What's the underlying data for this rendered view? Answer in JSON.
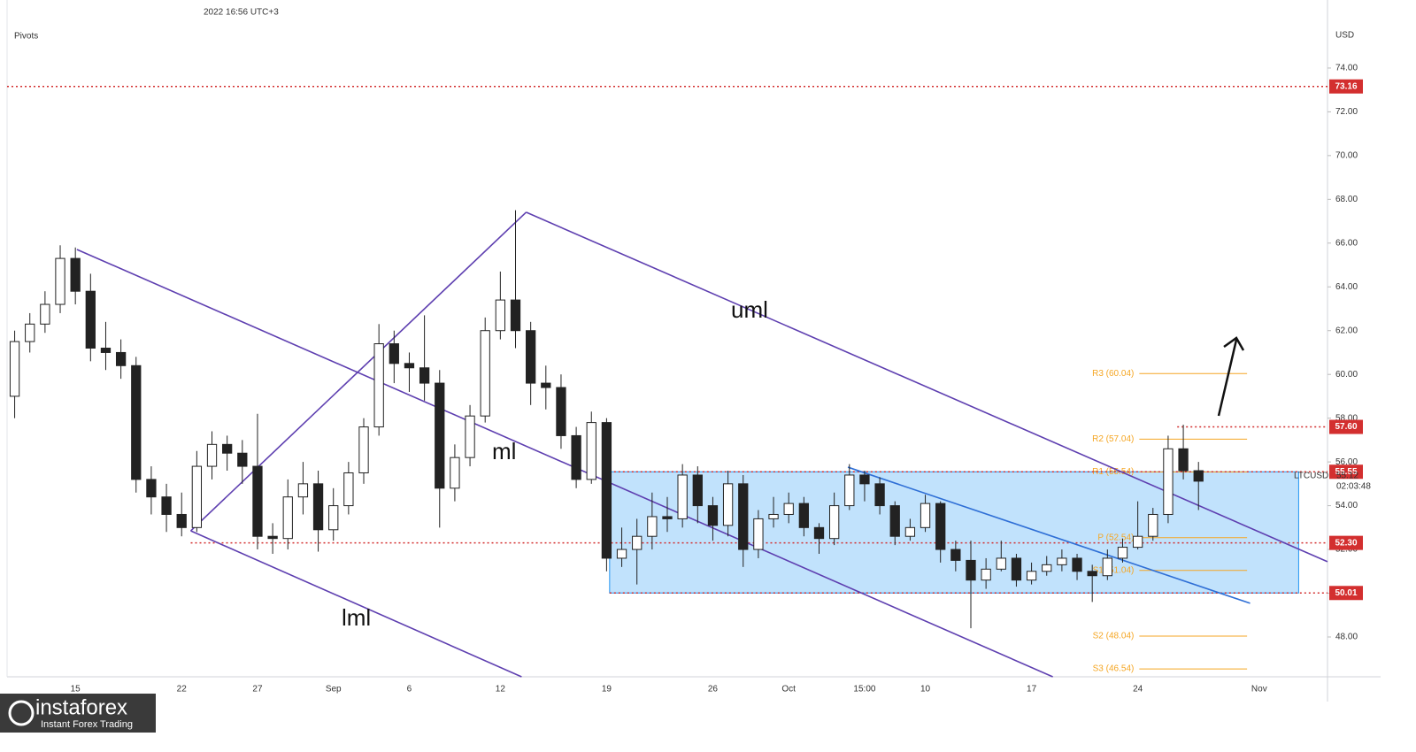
{
  "chart_data": {
    "type": "candlestick",
    "header": "2022 16:56 UTC+3",
    "indicator": "Pivots",
    "currency": "USD",
    "symbol": "LTCUSD",
    "countdown": "02:03:48",
    "brand": "instaforex",
    "brand_tagline": "Instant Forex Trading",
    "annotations": {
      "upper": "uml",
      "median": "ml",
      "lower": "lml"
    },
    "categories": [
      null,
      null,
      null,
      null,
      "15",
      null,
      null,
      null,
      null,
      null,
      null,
      "22",
      null,
      null,
      null,
      null,
      "27",
      null,
      null,
      null,
      null,
      "Sep",
      null,
      null,
      null,
      null,
      "6",
      null,
      null,
      null,
      null,
      null,
      "12",
      null,
      null,
      null,
      null,
      null,
      null,
      "19",
      null,
      null,
      null,
      null,
      null,
      null,
      "26",
      null,
      null,
      null,
      null,
      "Oct",
      null,
      null,
      null,
      null,
      "15:00",
      null,
      null,
      null,
      "10",
      null,
      null,
      null,
      null,
      null,
      null,
      "17",
      null,
      null,
      null,
      null,
      null,
      null,
      "24",
      null,
      null,
      null,
      null,
      null,
      null,
      null,
      "Nov",
      null,
      null,
      null,
      null
    ],
    "open": [
      59.0,
      61.5,
      62.3,
      63.2,
      65.3,
      63.8,
      61.2,
      61.0,
      60.4,
      55.2,
      54.4,
      53.6,
      53.0,
      55.8,
      56.8,
      56.4,
      55.8,
      52.6,
      52.5,
      54.4,
      55.0,
      52.9,
      54.0,
      55.5,
      57.6,
      61.4,
      60.5,
      60.3,
      59.6,
      54.8,
      56.2,
      58.1,
      62.0,
      63.4,
      62.0,
      59.6,
      59.4,
      57.2,
      55.2,
      57.8,
      51.6,
      52.0,
      52.6,
      53.5,
      53.4,
      55.4,
      54.0,
      53.1,
      55.0,
      52.0,
      53.4,
      53.6,
      54.1,
      53.0,
      52.5,
      54.0,
      55.4,
      55.0,
      54.0,
      52.6,
      53.0,
      54.1,
      52.0,
      51.5,
      50.6,
      51.1,
      51.6,
      50.6,
      51.0,
      51.3,
      51.6,
      51.0,
      50.8,
      51.6,
      52.1,
      52.6,
      53.6,
      56.6,
      55.6,
      null,
      null,
      null,
      null,
      null,
      null,
      null,
      null
    ],
    "high": [
      62.0,
      62.8,
      63.8,
      65.9,
      65.8,
      64.6,
      62.4,
      61.6,
      60.8,
      55.8,
      55.0,
      54.6,
      56.5,
      57.4,
      57.2,
      57.0,
      58.2,
      53.2,
      55.2,
      56.0,
      55.6,
      54.8,
      56.0,
      58.0,
      62.3,
      62.0,
      61.0,
      62.7,
      60.2,
      56.8,
      58.6,
      62.6,
      64.7,
      67.5,
      62.4,
      60.4,
      60.0,
      57.6,
      58.3,
      58.0,
      53.0,
      53.4,
      54.6,
      54.4,
      55.9,
      55.8,
      54.4,
      55.6,
      55.4,
      53.8,
      54.4,
      54.6,
      54.4,
      53.2,
      54.6,
      55.9,
      55.6,
      55.3,
      54.2,
      53.4,
      54.5,
      54.2,
      52.4,
      52.4,
      51.6,
      52.4,
      51.8,
      51.4,
      51.7,
      52.0,
      51.8,
      51.3,
      52.0,
      52.5,
      54.2,
      53.9,
      57.2,
      57.7,
      56.0,
      null,
      null,
      null,
      null,
      null,
      null,
      null,
      null
    ],
    "low": [
      58.0,
      61.0,
      61.9,
      62.8,
      63.2,
      60.6,
      60.2,
      59.8,
      54.6,
      53.6,
      52.8,
      52.6,
      52.8,
      55.2,
      55.6,
      55.0,
      52.0,
      51.8,
      52.0,
      53.6,
      51.9,
      52.4,
      53.6,
      55.0,
      57.2,
      59.6,
      59.2,
      58.8,
      53.0,
      54.2,
      55.8,
      57.8,
      61.6,
      61.2,
      58.6,
      58.4,
      56.6,
      54.8,
      55.0,
      51.0,
      51.2,
      50.4,
      52.0,
      52.8,
      53.0,
      53.2,
      52.4,
      52.6,
      51.2,
      51.6,
      53.0,
      53.2,
      52.6,
      51.8,
      52.2,
      53.8,
      54.2,
      53.6,
      52.2,
      52.4,
      52.8,
      51.4,
      51.0,
      48.4,
      50.2,
      51.0,
      50.3,
      50.4,
      50.8,
      51.0,
      50.6,
      49.6,
      50.6,
      51.4,
      52.0,
      52.4,
      53.2,
      55.2,
      53.8,
      null,
      null,
      null,
      null,
      null,
      null,
      null,
      null
    ],
    "close": [
      61.5,
      62.3,
      63.2,
      65.3,
      63.8,
      61.2,
      61.0,
      60.4,
      55.2,
      54.4,
      53.6,
      53.0,
      55.8,
      56.8,
      56.4,
      55.8,
      52.6,
      52.5,
      54.4,
      55.0,
      52.9,
      54.0,
      55.5,
      57.6,
      61.4,
      60.5,
      60.3,
      59.6,
      54.8,
      56.2,
      58.1,
      62.0,
      63.4,
      62.0,
      59.6,
      59.4,
      57.2,
      55.2,
      57.8,
      51.6,
      52.0,
      52.6,
      53.5,
      53.4,
      55.4,
      54.0,
      53.1,
      55.0,
      52.0,
      53.4,
      53.6,
      54.1,
      53.0,
      52.5,
      54.0,
      55.4,
      55.0,
      54.0,
      52.6,
      53.0,
      54.1,
      52.0,
      51.5,
      50.6,
      51.1,
      51.6,
      50.6,
      51.0,
      51.3,
      51.6,
      51.0,
      50.8,
      51.6,
      52.1,
      52.6,
      53.6,
      56.6,
      55.6,
      55.12,
      null,
      null,
      null,
      null,
      null,
      null,
      null,
      null
    ],
    "ylim": [
      46.18,
      77.11
    ],
    "yticks": [
      {
        "value": 48,
        "label": "48.00"
      },
      {
        "value": 50,
        "label": "50.00"
      },
      {
        "value": 52,
        "label": "52.00"
      },
      {
        "value": 54,
        "label": "54.00"
      },
      {
        "value": 56,
        "label": "56.00"
      },
      {
        "value": 58,
        "label": "58.00"
      },
      {
        "value": 60,
        "label": "60.00"
      },
      {
        "value": 62,
        "label": "62.00"
      },
      {
        "value": 64,
        "label": "64.00"
      },
      {
        "value": 66,
        "label": "66.00"
      },
      {
        "value": 68,
        "label": "68.00"
      },
      {
        "value": 70,
        "label": "70.00"
      },
      {
        "value": 72,
        "label": "72.00"
      },
      {
        "value": 74,
        "label": "74.00"
      }
    ],
    "grid": false,
    "up_color": "#ffffff",
    "down_color": "#222222",
    "levels": [
      {
        "value": 73.16,
        "label": "73.16",
        "start": -0.5
      },
      {
        "value": 57.6,
        "label": "57.60",
        "start": 76.6
      },
      {
        "value": 55.55,
        "label": "55.55",
        "start": 39.2
      },
      {
        "value": 52.3,
        "label": "52.30",
        "start": 11.6
      },
      {
        "value": 50.01,
        "label": "50.01",
        "start": 39.2
      }
    ],
    "level_color": "#d32f2f",
    "range_box": {
      "start": 39.2,
      "end": 84.6,
      "top": 55.55,
      "bottom": 50.01,
      "color": "#2196f3"
    },
    "pitchfork": {
      "color": "#5e3fb0",
      "lines": [
        [
          [
            4.1,
            65.71
          ],
          [
            68.4,
            46.18
          ]
        ],
        [
          [
            33.7,
            67.41
          ],
          [
            86.5,
            51.44
          ]
        ],
        [
          [
            11.6,
            52.85
          ],
          [
            33.4,
            46.18
          ]
        ],
        [
          [
            11.6,
            52.85
          ],
          [
            33.7,
            67.41
          ]
        ]
      ]
    },
    "trendline": {
      "color": "#2f6fd6",
      "points": [
        [
          54.9,
          55.76
        ],
        [
          81.4,
          49.54
        ]
      ]
    },
    "pivots": {
      "color": "#f5a623",
      "start": 74.1,
      "end": 81.2,
      "levels": [
        {
          "label": "R3 (60.04)",
          "value": 60.04
        },
        {
          "label": "R2 (57.04)",
          "value": 57.04
        },
        {
          "label": "R1 (55.54)",
          "value": 55.54
        },
        {
          "label": "P (52.54)",
          "value": 52.54
        },
        {
          "label": "S1 (51.04)",
          "value": 51.04
        },
        {
          "label": "S2 (48.04)",
          "value": 48.04
        },
        {
          "label": "S3 (46.54)",
          "value": 46.54
        }
      ]
    }
  }
}
